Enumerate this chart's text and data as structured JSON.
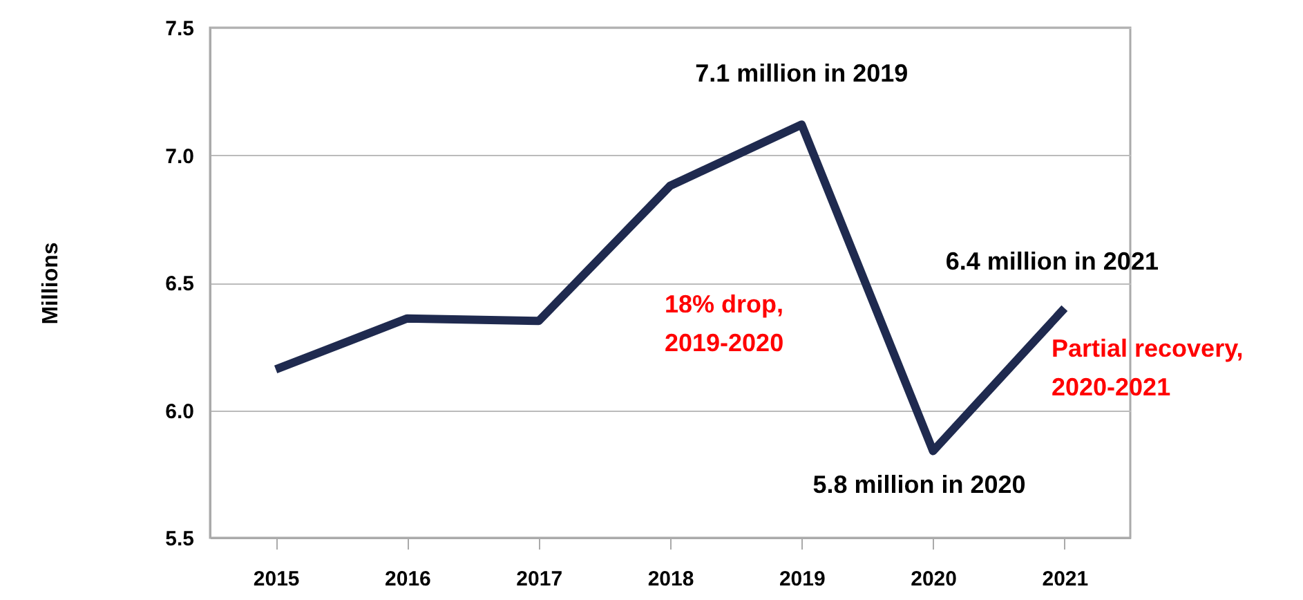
{
  "chart_data": {
    "type": "line",
    "ylabel": "Millions",
    "categories": [
      "2015",
      "2016",
      "2017",
      "2018",
      "2019",
      "2020",
      "2021"
    ],
    "series": [
      {
        "color": "#1f2a4f",
        "values": [
          6.16,
          6.36,
          6.35,
          6.88,
          7.12,
          5.84,
          6.4
        ]
      }
    ],
    "ylim": [
      5.5,
      7.5
    ],
    "yticks": [
      {
        "value": 5.5,
        "label": "5.5"
      },
      {
        "value": 6.0,
        "label": "6.0"
      },
      {
        "value": 6.5,
        "label": "6.5"
      },
      {
        "value": 7.0,
        "label": "7.0"
      },
      {
        "value": 7.5,
        "label": "7.5"
      }
    ],
    "grid": "y",
    "annotations": [
      {
        "text": "7.1 million in 2019",
        "x": "2019",
        "y": 7.12
      },
      {
        "text": "5.8 million in 2020",
        "x": "2020",
        "y": 5.84
      },
      {
        "text": "6.4 million in 2021",
        "x": "2021",
        "y": 6.4
      },
      "18% drop, 2019-2020",
      "Partial recovery, 2020-2021"
    ]
  }
}
